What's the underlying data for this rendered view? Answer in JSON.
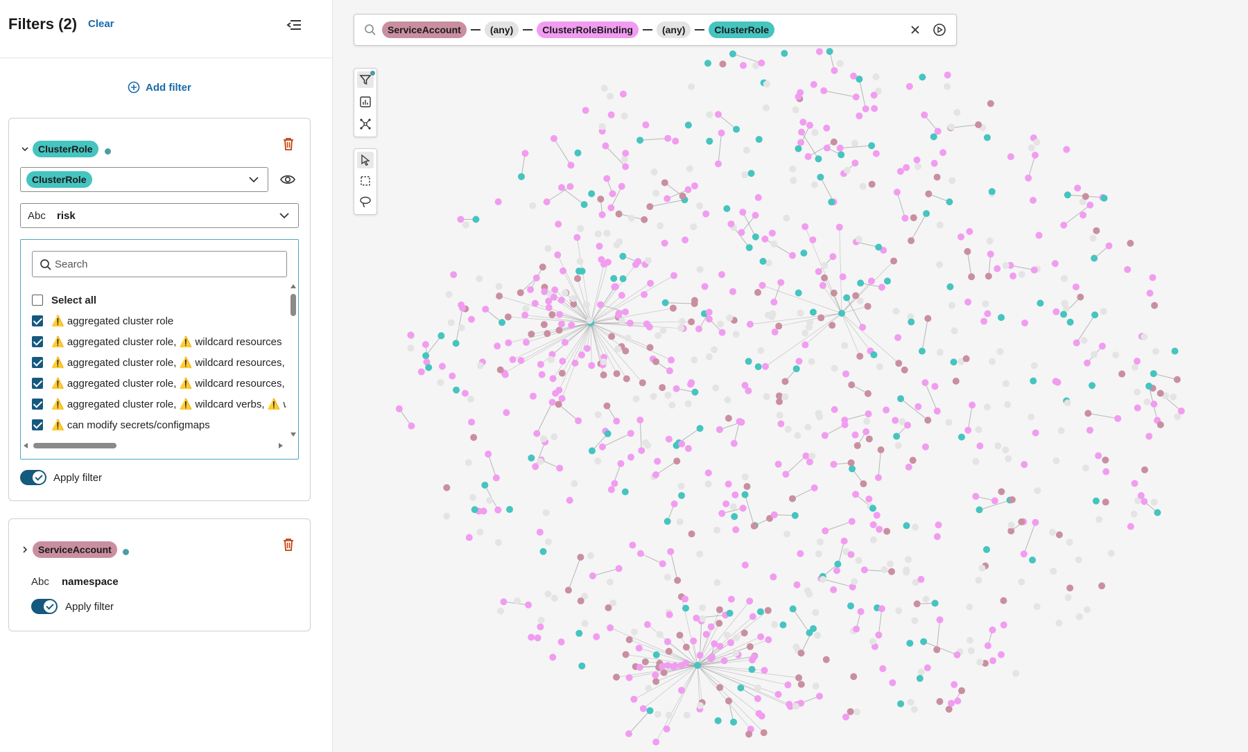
{
  "sidebar": {
    "title": "Filters (2)",
    "clear_label": "Clear",
    "add_filter_label": "Add filter",
    "filter1": {
      "node_label": "ClusterRole",
      "select_value": "ClusterRole",
      "type_label": "Abc",
      "attribute": "risk",
      "search_placeholder": "Search",
      "select_all_label": "Select all",
      "items": [
        "⚠️ aggregated cluster role",
        "⚠️ aggregated cluster role, ⚠️ wildcard resources",
        "⚠️ aggregated cluster role, ⚠️ wildcard resources,",
        "⚠️ aggregated cluster role, ⚠️ wildcard resources,",
        "⚠️ aggregated cluster role, ⚠️ wildcard verbs, ⚠️ w",
        "⚠️ can modify secrets/configmaps"
      ],
      "apply_label": "Apply filter"
    },
    "filter2": {
      "node_label": "ServiceAccount",
      "type_label": "Abc",
      "attribute": "namespace",
      "apply_label": "Apply filter"
    }
  },
  "query": {
    "items": [
      {
        "label": "ServiceAccount",
        "kind": "mauve"
      },
      {
        "label": "(any)",
        "kind": "grey"
      },
      {
        "label": "ClusterRoleBinding",
        "kind": "pink"
      },
      {
        "label": "(any)",
        "kind": "grey"
      },
      {
        "label": "ClusterRole",
        "kind": "teal"
      }
    ]
  },
  "tools": [
    "filter-icon",
    "chart-icon",
    "layout-icon",
    "pointer-icon",
    "box-select-icon",
    "lasso-icon"
  ],
  "colors": {
    "ServiceAccount": "#c98fa0",
    "ClusterRoleBinding": "#f19cf0",
    "ClusterRole": "#45c4c0",
    "Other": "#e4e4e4",
    "accent": "#1a6aa8",
    "toggle": "#15597e"
  }
}
